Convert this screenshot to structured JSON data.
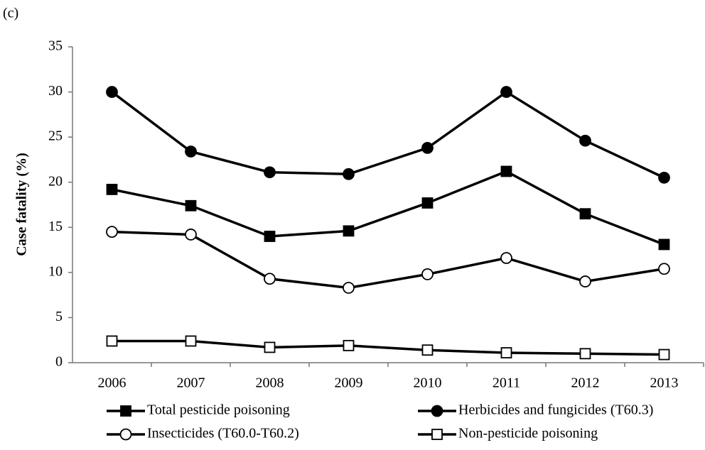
{
  "chart_data": {
    "type": "line",
    "panel_label": "(c)",
    "y_label": "Case fatality (%)",
    "categories": [
      "2006",
      "2007",
      "2008",
      "2009",
      "2010",
      "2011",
      "2012",
      "2013"
    ],
    "ylim": [
      0,
      35
    ],
    "yticks": [
      0,
      5,
      10,
      15,
      20,
      25,
      30,
      35
    ],
    "grid": false,
    "series": [
      {
        "name": "Total pesticide poisoning",
        "color": "#000000",
        "marker": "square",
        "marker_fill": "#000000",
        "values": [
          19.2,
          17.4,
          14.0,
          14.6,
          17.7,
          21.2,
          16.5,
          13.1
        ]
      },
      {
        "name": "Herbicides and fungicides (T60.3)",
        "color": "#000000",
        "marker": "circle",
        "marker_fill": "#000000",
        "values": [
          30.0,
          23.4,
          21.1,
          20.9,
          23.8,
          30.0,
          24.6,
          20.5
        ]
      },
      {
        "name": "Insecticides (T60.0-T60.2)",
        "color": "#000000",
        "marker": "circle",
        "marker_fill": "#ffffff",
        "values": [
          14.5,
          14.2,
          9.3,
          8.3,
          9.8,
          11.6,
          9.0,
          10.4
        ]
      },
      {
        "name": "Non-pesticide poisoning",
        "color": "#000000",
        "marker": "square",
        "marker_fill": "#ffffff",
        "values": [
          2.4,
          2.4,
          1.7,
          1.9,
          1.4,
          1.1,
          1.0,
          0.9
        ]
      }
    ]
  }
}
